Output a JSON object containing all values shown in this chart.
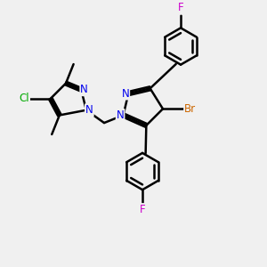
{
  "bg_color": "#f0f0f0",
  "bond_color": "#000000",
  "bond_width": 1.8,
  "atom_colors": {
    "N": "#0000ee",
    "Br": "#cc6600",
    "Cl": "#00aa00",
    "F": "#cc00cc",
    "C": "#000000"
  },
  "font_size_atom": 8.5,
  "dbo": 0.055
}
